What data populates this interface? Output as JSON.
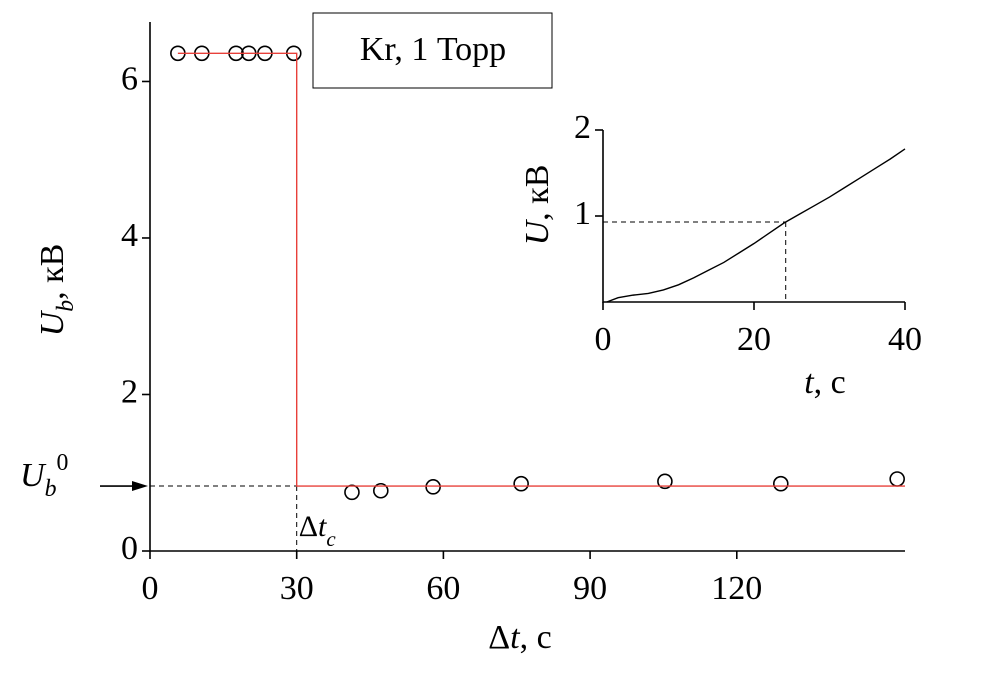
{
  "chart_data": [
    {
      "type": "scatter",
      "xlabel": {
        "prefix": "Δ",
        "symbol": "t",
        "unit": ", с"
      },
      "ylabel": {
        "symbol": "U",
        "subscript": "b",
        "unit": ", кВ"
      },
      "xlim": [
        0,
        154.4
      ],
      "ylim": [
        0,
        6.76
      ],
      "xticks": [
        0,
        30,
        60,
        90,
        120
      ],
      "yticks": [
        0,
        2,
        4,
        6
      ],
      "series": [
        {
          "marker": "open-circle",
          "color": "#000000",
          "x": [
            5.7,
            10.6,
            17.6,
            20.2,
            23.5,
            29.4,
            41.3,
            47.2,
            57.9,
            75.9,
            105.3,
            129,
            152.8
          ],
          "values": [
            6.36,
            6.36,
            6.36,
            6.36,
            6.36,
            6.36,
            0.75,
            0.77,
            0.82,
            0.86,
            0.89,
            0.86,
            0.92
          ]
        },
        {
          "line": "solid",
          "color": "#e8403a",
          "x": [
            5.7,
            30,
            30,
            154.4
          ],
          "values": [
            6.36,
            6.36,
            0.83,
            0.83
          ]
        }
      ],
      "legend_text": "Kr, 1 Торр",
      "reference": {
        "x": 30,
        "y": 0.83,
        "y_label": {
          "symbol": "U",
          "subscript": "b",
          "superscript": "0"
        },
        "x_label": {
          "prefix": "Δ",
          "symbol": "t",
          "subscript": "c"
        }
      }
    },
    {
      "type": "line",
      "xlabel": {
        "symbol": "t",
        "unit": ", с"
      },
      "ylabel": {
        "symbol": "U",
        "unit": ", кВ"
      },
      "xlim": [
        0,
        40
      ],
      "ylim": [
        0,
        2
      ],
      "xticks": [
        0,
        20,
        40
      ],
      "yticks": [
        1,
        2
      ],
      "series": [
        {
          "color": "#000000",
          "x": [
            0.5,
            2,
            4,
            6,
            8,
            10,
            12,
            14,
            16,
            18,
            20,
            22,
            24,
            26,
            28,
            30,
            32,
            34,
            36,
            38,
            40
          ],
          "values": [
            0,
            0.05,
            0.08,
            0.1,
            0.14,
            0.2,
            0.28,
            0.37,
            0.46,
            0.57,
            0.68,
            0.8,
            0.92,
            1.02,
            1.12,
            1.22,
            1.33,
            1.44,
            1.55,
            1.66,
            1.78
          ]
        }
      ],
      "reference": {
        "x": 24.2,
        "y": 0.93
      }
    }
  ]
}
